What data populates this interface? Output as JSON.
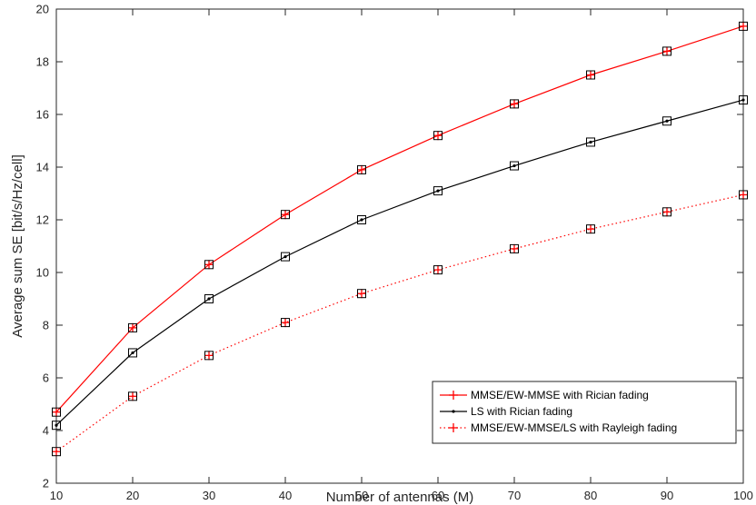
{
  "chart_data": {
    "type": "line",
    "xlabel": "Number of antennas (M)",
    "ylabel": "Average sum SE [bit/s/Hz/cell]",
    "xlim": [
      10,
      100
    ],
    "ylim": [
      2,
      20
    ],
    "xticks": [
      10,
      20,
      30,
      40,
      50,
      60,
      70,
      80,
      90,
      100
    ],
    "yticks": [
      2,
      4,
      6,
      8,
      10,
      12,
      14,
      16,
      18,
      20
    ],
    "grid": false,
    "legend_position": "bottom-right",
    "x": [
      10,
      20,
      30,
      40,
      50,
      60,
      70,
      80,
      90,
      100
    ],
    "series": [
      {
        "name": "MMSE/EW-MMSE with Rician fading",
        "values": [
          4.7,
          7.9,
          10.3,
          12.2,
          13.9,
          15.2,
          16.4,
          17.5,
          18.4,
          19.35
        ],
        "color": "#ff0000",
        "line_style": "solid",
        "marker": "plus"
      },
      {
        "name": "LS with Rician fading",
        "values": [
          4.2,
          6.95,
          9.0,
          10.6,
          12.0,
          13.1,
          14.05,
          14.95,
          15.75,
          16.55
        ],
        "color": "#000000",
        "line_style": "solid",
        "marker": "dot"
      },
      {
        "name": "MMSE/EW-MMSE/LS with Rayleigh fading",
        "values": [
          3.2,
          5.3,
          6.85,
          8.1,
          9.2,
          10.1,
          10.9,
          11.65,
          12.3,
          12.95
        ],
        "color": "#ff0000",
        "line_style": "dotted",
        "marker": "plus"
      }
    ],
    "overlay_markers": {
      "color": "#000000",
      "marker": "square",
      "series_indices": [
        0,
        1,
        2
      ]
    }
  }
}
